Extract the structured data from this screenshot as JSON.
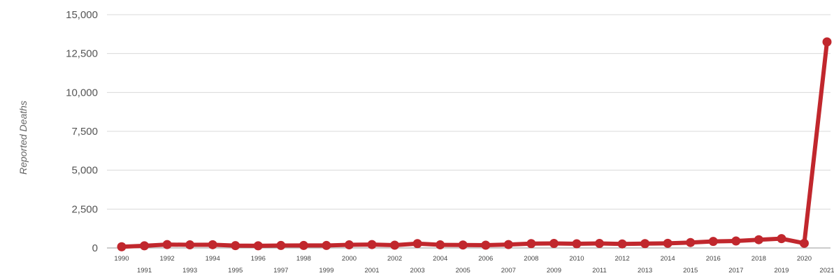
{
  "chart_data": {
    "type": "line",
    "title": "",
    "xlabel": "",
    "ylabel": "Reported Deaths",
    "ylim": [
      0,
      15000
    ],
    "yticks": [
      "0",
      "2,500",
      "5,000",
      "7,500",
      "10,000",
      "12,500",
      "15,000"
    ],
    "ytick_values": [
      0,
      2500,
      5000,
      7500,
      10000,
      12500,
      15000
    ],
    "grid": true,
    "legend": "none",
    "color": "#c1272d",
    "x": [
      "1990",
      "1991",
      "1992",
      "1993",
      "1994",
      "1995",
      "1996",
      "1997",
      "1998",
      "1999",
      "2000",
      "2001",
      "2002",
      "2003",
      "2004",
      "2005",
      "2006",
      "2007",
      "2008",
      "2009",
      "2010",
      "2011",
      "2012",
      "2013",
      "2014",
      "2015",
      "2016",
      "2017",
      "2018",
      "2019",
      "2020",
      "2021"
    ],
    "series": [
      {
        "values": [
          80,
          140,
          220,
          200,
          210,
          150,
          140,
          160,
          160,
          160,
          200,
          220,
          180,
          280,
          200,
          190,
          180,
          220,
          280,
          290,
          270,
          290,
          260,
          280,
          300,
          350,
          420,
          450,
          530,
          600,
          300,
          13250
        ]
      }
    ]
  }
}
